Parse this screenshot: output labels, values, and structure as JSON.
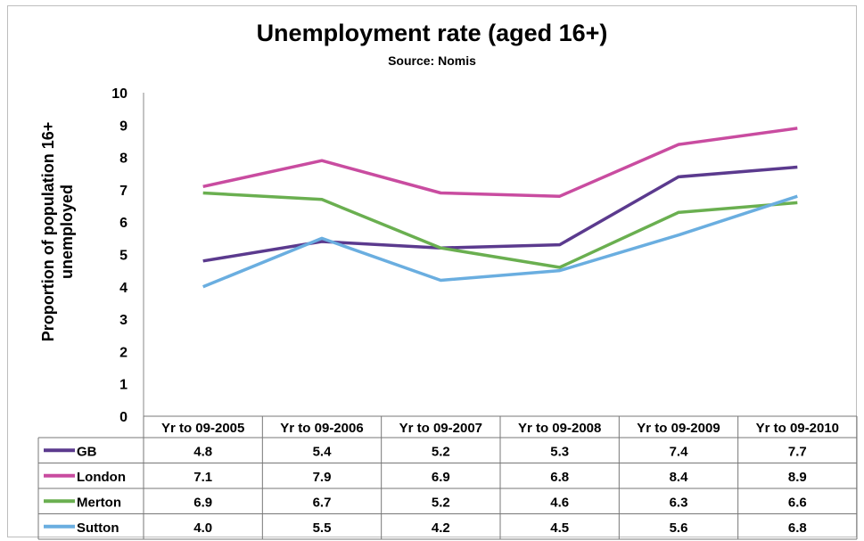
{
  "chart_data": {
    "type": "line",
    "title": "Unemployment rate (aged 16+)",
    "subtitle": "Source: Nomis",
    "ylabel": "Proportion of population 16+\nunemployed",
    "xlabel": "",
    "ylim": [
      0,
      10
    ],
    "yticks": [
      0,
      1,
      2,
      3,
      4,
      5,
      6,
      7,
      8,
      9,
      10
    ],
    "grid": false,
    "legend": "data-table",
    "categories": [
      "Yr to 09-2005",
      "Yr to 09-2006",
      "Yr to 09-2007",
      "Yr to 09-2008",
      "Yr to 09-2009",
      "Yr to 09-2010"
    ],
    "series": [
      {
        "name": "GB",
        "color": "#5b3a8e",
        "values": [
          4.8,
          5.4,
          5.2,
          5.3,
          7.4,
          7.7
        ],
        "labels": [
          "4.8",
          "5.4",
          "5.2",
          "5.3",
          "7.4",
          "7.7"
        ]
      },
      {
        "name": "London",
        "color": "#c94ca0",
        "values": [
          7.1,
          7.9,
          6.9,
          6.8,
          8.4,
          8.9
        ],
        "labels": [
          "7.1",
          "7.9",
          "6.9",
          "6.8",
          "8.4",
          "8.9"
        ]
      },
      {
        "name": "Merton",
        "color": "#6aaf50",
        "values": [
          6.9,
          6.7,
          5.2,
          4.6,
          6.3,
          6.6
        ],
        "labels": [
          "6.9",
          "6.7",
          "5.2",
          "4.6",
          "6.3",
          "6.6"
        ]
      },
      {
        "name": "Sutton",
        "color": "#6aaee0",
        "values": [
          4.0,
          5.5,
          4.2,
          4.5,
          5.6,
          6.8
        ],
        "labels": [
          "4.0",
          "5.5",
          "4.2",
          "4.5",
          "5.6",
          "6.8"
        ]
      }
    ]
  }
}
